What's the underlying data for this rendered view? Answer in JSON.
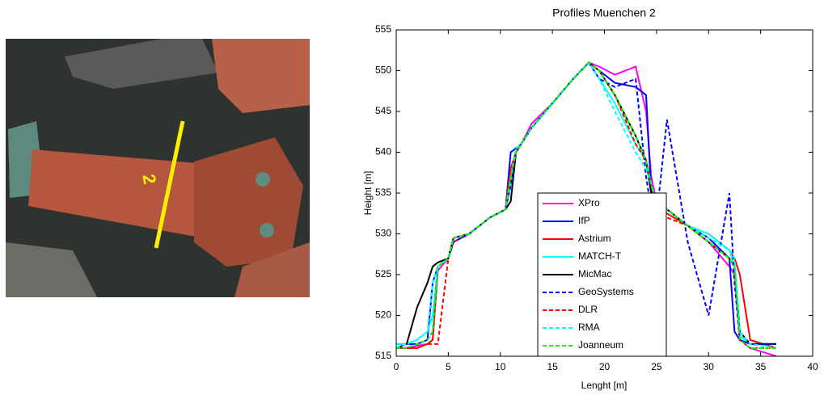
{
  "image": {
    "label": "2"
  },
  "chart_data": {
    "type": "line",
    "title": "Profiles Muenchen 2",
    "xlabel": "Lenght [m]",
    "ylabel": "Height [m]",
    "x": [
      0,
      1,
      2,
      3,
      3.5,
      4,
      5,
      5.5,
      7,
      9,
      10.5,
      11,
      11.5,
      12,
      13,
      15,
      17,
      18.5,
      19.5,
      21,
      23,
      24,
      24.5,
      25,
      26,
      28,
      30,
      32,
      32.5,
      33,
      34,
      36.5
    ],
    "xlim": [
      0,
      40
    ],
    "xticks": [
      0,
      5,
      10,
      15,
      20,
      25,
      30,
      35,
      40
    ],
    "ylim": [
      515,
      555
    ],
    "yticks": [
      515,
      520,
      525,
      530,
      535,
      540,
      545,
      550,
      555
    ],
    "legend": "lower center",
    "series": [
      {
        "name": "XPro",
        "color": "#ff00ff",
        "linestyle": "solid",
        "values": [
          516,
          516,
          516.3,
          516.5,
          517,
          525.5,
          527,
          529,
          530,
          532,
          533,
          536,
          540,
          541,
          543.5,
          546,
          549,
          551,
          550.5,
          549.5,
          550.5,
          545,
          537,
          534,
          533,
          531,
          529,
          526,
          525,
          517,
          516,
          515
        ]
      },
      {
        "name": "IfP",
        "color": "#0000ff",
        "linestyle": "solid",
        "values": [
          516.5,
          516.5,
          516.5,
          517,
          524,
          526,
          527,
          529.5,
          530,
          532,
          533,
          540,
          540.5,
          541,
          543,
          546,
          549,
          551,
          550,
          548.5,
          548,
          547,
          535,
          534,
          533,
          531,
          529.5,
          527,
          518,
          517,
          516.5,
          516.5
        ]
      },
      {
        "name": "Astrium",
        "color": "#ff0000",
        "linestyle": "solid",
        "values": [
          516,
          516,
          516,
          516.5,
          517,
          526,
          527,
          529,
          530,
          532,
          533,
          538,
          540,
          541,
          543,
          546,
          549,
          551,
          550,
          547,
          542,
          539,
          535,
          534,
          532.5,
          531,
          530,
          528,
          527,
          525,
          517,
          516
        ]
      },
      {
        "name": "MATCH-T",
        "color": "#00ffff",
        "linestyle": "solid",
        "values": [
          516.5,
          516.5,
          517,
          518,
          520,
          526,
          527,
          529.5,
          530,
          532,
          533,
          536,
          540,
          541,
          543,
          546,
          549,
          551,
          549,
          546,
          541,
          539,
          536,
          534,
          533,
          531,
          530,
          528,
          526,
          517.5,
          516.5,
          516.5
        ]
      },
      {
        "name": "MicMac",
        "color": "#000000",
        "linestyle": "solid",
        "values": [
          516,
          516.5,
          521,
          524,
          526,
          526.5,
          527,
          529.5,
          530,
          532,
          533,
          534,
          540,
          541,
          543,
          546,
          549,
          551,
          550,
          547,
          542,
          539,
          535,
          534,
          533,
          531,
          529,
          527,
          526,
          518,
          516.5,
          516.5
        ]
      },
      {
        "name": "GeoSystems",
        "color": "#0000ff",
        "linestyle": "dashed",
        "values": [
          516,
          516,
          516.5,
          517,
          518,
          526,
          527,
          529,
          530,
          532,
          533,
          536,
          540,
          541,
          543,
          546,
          549,
          551,
          549,
          548,
          549,
          537,
          533,
          532,
          544,
          529,
          520,
          535,
          524,
          517,
          516.5,
          516.5
        ]
      },
      {
        "name": "DLR",
        "color": "#ff0000",
        "linestyle": "dashed",
        "values": [
          516,
          516,
          516,
          516.5,
          516.5,
          516.5,
          527,
          529.5,
          530,
          532,
          533,
          537,
          540,
          541,
          543,
          546,
          549,
          551,
          550,
          547,
          541,
          539,
          536,
          533,
          532,
          531,
          529,
          527,
          526,
          517,
          516,
          516
        ]
      },
      {
        "name": "RMA",
        "color": "#00ffff",
        "linestyle": "dashed",
        "values": [
          516,
          516.5,
          517,
          518,
          524,
          526,
          527,
          529.5,
          530,
          532,
          533,
          537,
          540.5,
          541,
          543,
          546,
          549,
          551,
          549,
          545,
          540,
          538,
          536,
          534,
          533,
          531,
          529.5,
          528,
          527,
          518,
          516.5,
          516
        ]
      },
      {
        "name": "Joanneum",
        "color": "#00ff00",
        "linestyle": "dashed",
        "values": [
          516,
          516,
          516.5,
          517,
          518,
          526,
          527,
          529.5,
          530,
          532,
          533,
          537,
          540,
          541,
          543,
          546,
          549,
          551,
          550,
          547,
          542,
          539,
          536,
          534,
          533,
          531,
          529,
          527,
          526,
          517,
          516,
          516
        ]
      }
    ]
  }
}
